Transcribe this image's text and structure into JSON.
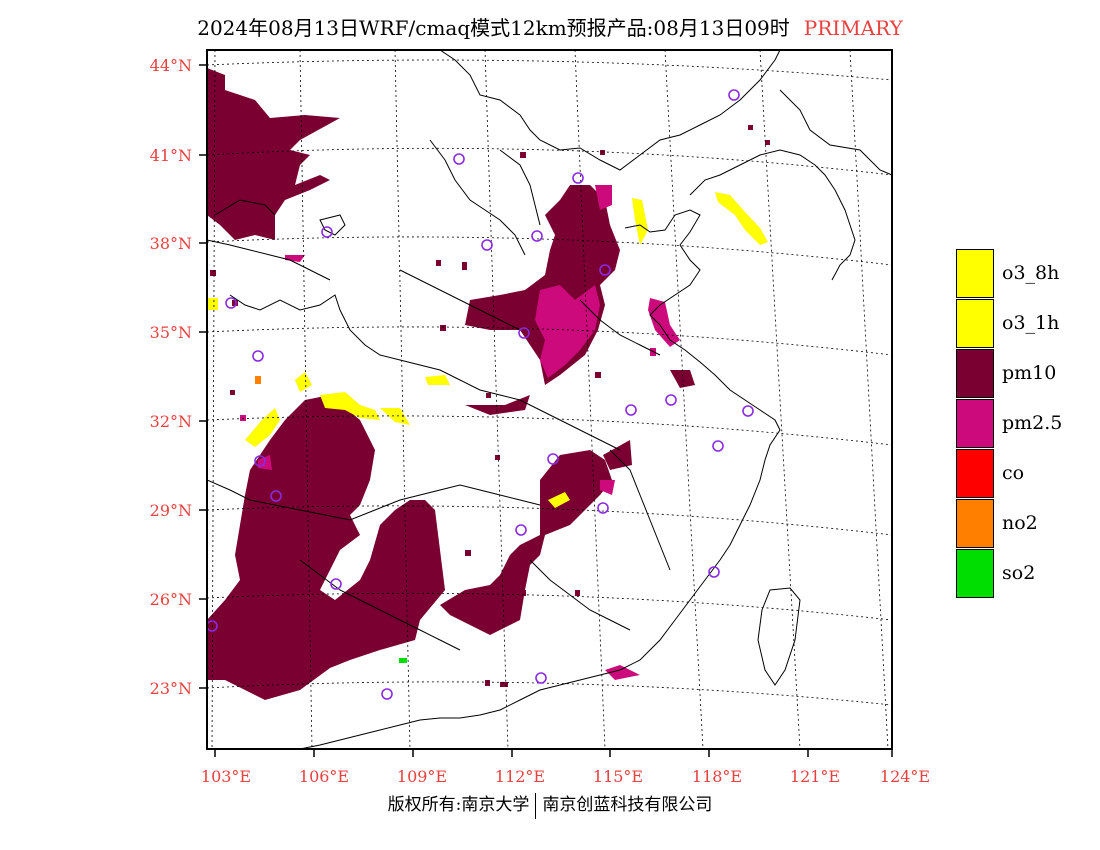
{
  "title": {
    "main": "2024年08月13日WRF/cmaq模式12km预报产品:08月13日09时",
    "tag": "PRIMARY"
  },
  "map": {
    "lat_labels": [
      "44°N",
      "41°N",
      "38°N",
      "35°N",
      "32°N",
      "29°N",
      "26°N",
      "23°N"
    ],
    "lon_labels": [
      "103°E",
      "106°E",
      "109°E",
      "112°E",
      "115°E",
      "118°E",
      "121°E",
      "124°E"
    ],
    "colors": {
      "pm10": "#7a0031",
      "pm25": "#cc0a7c",
      "o3": "#ffff00",
      "co": "#ff0000",
      "no2": "#ff7f00",
      "so2": "#00dd00",
      "station": "#8a2be2"
    }
  },
  "legend": [
    {
      "label": "o3_8h",
      "color": "#ffff00"
    },
    {
      "label": "o3_1h",
      "color": "#ffff00"
    },
    {
      "label": "pm10",
      "color": "#7a0031"
    },
    {
      "label": "pm2.5",
      "color": "#cc0a7c"
    },
    {
      "label": "co",
      "color": "#ff0000"
    },
    {
      "label": "no2",
      "color": "#ff7f00"
    },
    {
      "label": "so2",
      "color": "#00dd00"
    }
  ],
  "footer": {
    "left": "版权所有:南京大学",
    "right": "南京创蓝科技有限公司"
  }
}
